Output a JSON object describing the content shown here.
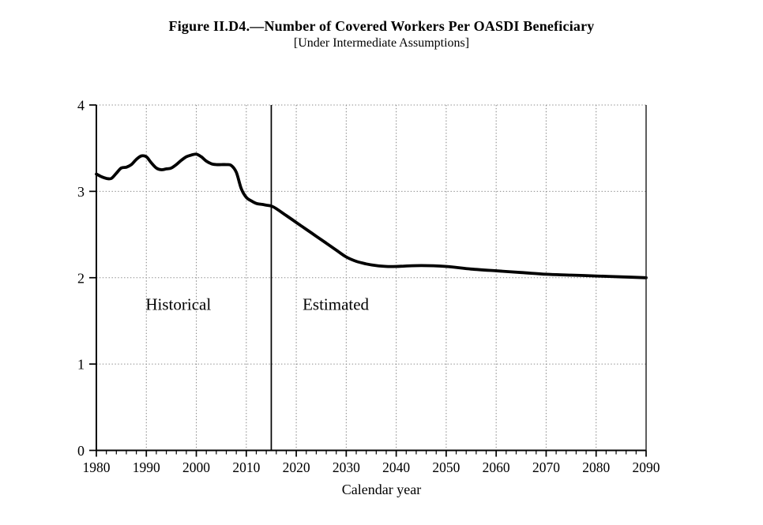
{
  "figure": {
    "title": "Figure II.D4.—Number of Covered Workers Per OASDI Beneficiary",
    "subtitle": "[Under Intermediate Assumptions]"
  },
  "chart_data": {
    "type": "line",
    "title": "Figure II.D4.—Number of Covered Workers Per OASDI Beneficiary",
    "subtitle": "[Under Intermediate Assumptions]",
    "xlabel": "Calendar year",
    "ylabel": "",
    "xlim": [
      1980,
      2090
    ],
    "ylim": [
      0,
      4
    ],
    "x_ticks": [
      1980,
      1990,
      2000,
      2010,
      2020,
      2030,
      2040,
      2050,
      2060,
      2070,
      2080,
      2090
    ],
    "x_minor_tick_step": 2,
    "y_ticks": [
      0,
      1,
      2,
      3,
      4
    ],
    "grid": "dotted horizontal lines at integer values, dotted vertical lines at decades",
    "legend": "none",
    "divider": {
      "x": 2015,
      "style": "solid vertical line separating historical from estimated"
    },
    "annotations": [
      {
        "text": "Historical",
        "x": 1996.4,
        "y": 1.69
      },
      {
        "text": "Estimated",
        "x": 2027.9,
        "y": 1.69
      }
    ],
    "line_color": "#000000",
    "grid_color": "#8a8a8a",
    "background": "#ffffff",
    "series": [
      {
        "name": "Historical",
        "points": [
          [
            1980,
            3.2
          ],
          [
            1981,
            3.17
          ],
          [
            1982,
            3.15
          ],
          [
            1983,
            3.15
          ],
          [
            1984,
            3.21
          ],
          [
            1985,
            3.27
          ],
          [
            1986,
            3.28
          ],
          [
            1987,
            3.31
          ],
          [
            1988,
            3.37
          ],
          [
            1989,
            3.41
          ],
          [
            1990,
            3.4
          ],
          [
            1991,
            3.33
          ],
          [
            1992,
            3.27
          ],
          [
            1993,
            3.25
          ],
          [
            1994,
            3.26
          ],
          [
            1995,
            3.27
          ],
          [
            1996,
            3.31
          ],
          [
            1997,
            3.36
          ],
          [
            1998,
            3.4
          ],
          [
            1999,
            3.42
          ],
          [
            2000,
            3.43
          ],
          [
            2001,
            3.4
          ],
          [
            2002,
            3.35
          ],
          [
            2003,
            3.32
          ],
          [
            2004,
            3.31
          ],
          [
            2005,
            3.31
          ],
          [
            2006,
            3.31
          ],
          [
            2007,
            3.3
          ],
          [
            2008,
            3.22
          ],
          [
            2009,
            3.03
          ],
          [
            2010,
            2.93
          ],
          [
            2011,
            2.89
          ],
          [
            2012,
            2.86
          ],
          [
            2013,
            2.85
          ],
          [
            2014,
            2.84
          ],
          [
            2015,
            2.83
          ]
        ]
      },
      {
        "name": "Estimated",
        "points": [
          [
            2015,
            2.83
          ],
          [
            2016,
            2.8
          ],
          [
            2018,
            2.72
          ],
          [
            2020,
            2.64
          ],
          [
            2022,
            2.56
          ],
          [
            2024,
            2.48
          ],
          [
            2026,
            2.4
          ],
          [
            2028,
            2.32
          ],
          [
            2030,
            2.24
          ],
          [
            2032,
            2.19
          ],
          [
            2034,
            2.16
          ],
          [
            2036,
            2.14
          ],
          [
            2038,
            2.13
          ],
          [
            2040,
            2.13
          ],
          [
            2045,
            2.14
          ],
          [
            2050,
            2.13
          ],
          [
            2055,
            2.1
          ],
          [
            2060,
            2.08
          ],
          [
            2065,
            2.06
          ],
          [
            2070,
            2.04
          ],
          [
            2075,
            2.03
          ],
          [
            2080,
            2.02
          ],
          [
            2085,
            2.01
          ],
          [
            2090,
            2.0
          ]
        ]
      }
    ]
  }
}
